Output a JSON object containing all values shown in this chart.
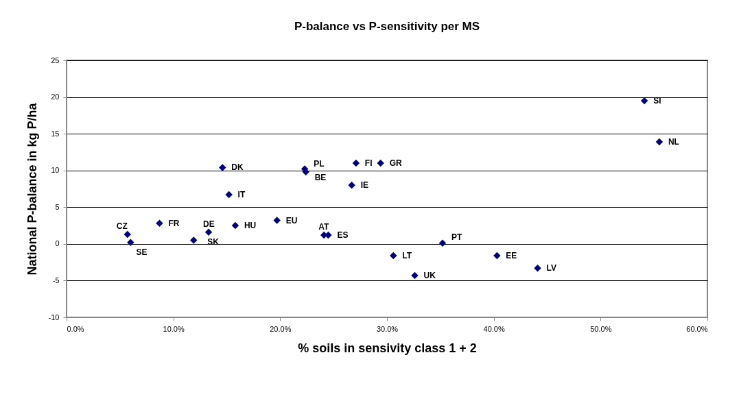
{
  "chart_data": {
    "type": "scatter",
    "title": "P-balance vs P-sensitivity per MS",
    "xlabel": "% soils in sensivity class 1 + 2",
    "ylabel": "National P-balance in kg P/ha",
    "x": [
      54.1,
      55.5,
      14.6,
      22.3,
      22.4,
      27.1,
      29.4,
      26.7,
      15.2,
      19.7,
      15.8,
      8.7,
      13.3,
      11.9,
      5.7,
      6.0,
      24.1,
      24.5,
      35.2,
      30.6,
      40.3,
      44.1,
      32.6
    ],
    "series": [
      {
        "color": "#000080",
        "values": [
          19.5,
          13.9,
          10.4,
          10.2,
          9.8,
          11.0,
          11.0,
          8.0,
          6.7,
          3.2,
          2.5,
          2.8,
          1.6,
          0.5,
          1.3,
          0.2,
          1.2,
          1.2,
          0.1,
          -1.6,
          -1.6,
          -3.3,
          -4.3
        ]
      }
    ],
    "annotations": [
      {
        "text": "SI",
        "x": 54.1,
        "y": 19.5
      },
      {
        "text": "NL",
        "x": 55.5,
        "y": 13.9
      },
      {
        "text": "DK",
        "x": 14.6,
        "y": 10.4
      },
      {
        "text": "PL",
        "x": 22.3,
        "y": 10.2
      },
      {
        "text": "BE",
        "x": 22.4,
        "y": 9.8
      },
      {
        "text": "FI",
        "x": 27.1,
        "y": 11.0
      },
      {
        "text": "GR",
        "x": 29.4,
        "y": 11.0
      },
      {
        "text": "IE",
        "x": 26.7,
        "y": 8.0
      },
      {
        "text": "IT",
        "x": 15.2,
        "y": 6.7
      },
      {
        "text": "EU",
        "x": 19.7,
        "y": 3.2
      },
      {
        "text": "HU",
        "x": 15.8,
        "y": 2.5
      },
      {
        "text": "FR",
        "x": 8.7,
        "y": 2.8
      },
      {
        "text": "DE",
        "x": 13.3,
        "y": 1.6
      },
      {
        "text": "SK",
        "x": 11.9,
        "y": 0.5
      },
      {
        "text": "CZ",
        "x": 5.7,
        "y": 1.3
      },
      {
        "text": "SE",
        "x": 6.0,
        "y": 0.2
      },
      {
        "text": "AT",
        "x": 24.1,
        "y": 1.2
      },
      {
        "text": "ES",
        "x": 24.5,
        "y": 1.2
      },
      {
        "text": "PT",
        "x": 35.2,
        "y": 0.1
      },
      {
        "text": "LT",
        "x": 30.6,
        "y": -1.6
      },
      {
        "text": "EE",
        "x": 40.3,
        "y": -1.6
      },
      {
        "text": "LV",
        "x": 44.1,
        "y": -3.3
      },
      {
        "text": "UK",
        "x": 32.6,
        "y": -4.3
      }
    ],
    "xlim": [
      0,
      60
    ],
    "xticks": [
      {
        "value": 0,
        "label": "0.0%"
      },
      {
        "value": 10,
        "label": "10.0%"
      },
      {
        "value": 20,
        "label": "20.0%"
      },
      {
        "value": 30,
        "label": "30.0%"
      },
      {
        "value": 40,
        "label": "40.0%"
      },
      {
        "value": 50,
        "label": "50.0%"
      },
      {
        "value": 60,
        "label": "60.0%"
      }
    ],
    "ylim": [
      -10,
      25
    ],
    "yticks": [
      -10,
      -5,
      0,
      5,
      10,
      15,
      20,
      25
    ],
    "grid": "y",
    "marker": "diamond",
    "legend": false
  }
}
